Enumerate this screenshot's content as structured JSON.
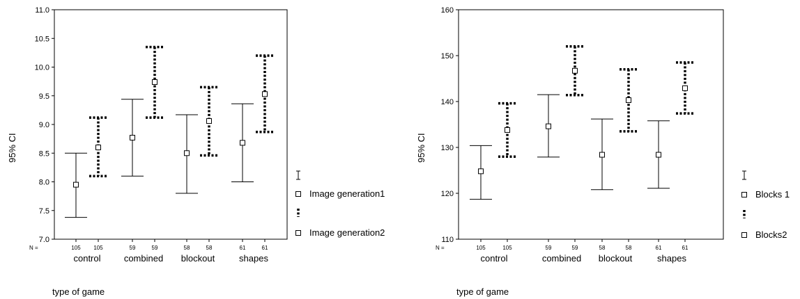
{
  "chart_data": [
    {
      "type": "errorbar",
      "ylabel": "95% CI",
      "xlabel": "type of game",
      "ylim": [
        7.0,
        11.0
      ],
      "yticks": [
        "7.0",
        "7.5",
        "8.0",
        "8.5",
        "9.0",
        "9.5",
        "10.0",
        "10.5",
        "11.0"
      ],
      "n_prefix": "N =",
      "categories": [
        "control",
        "combined",
        "blockout",
        "shapes"
      ],
      "n": [
        [
          "105",
          "105"
        ],
        [
          "59",
          "59"
        ],
        [
          "58",
          "58"
        ],
        [
          "61",
          "61"
        ]
      ],
      "legend_position": "right",
      "series": [
        {
          "name": "Image generation1",
          "style": "solid",
          "mean": [
            7.95,
            8.77,
            8.5,
            8.68
          ],
          "lower": [
            7.38,
            8.1,
            7.8,
            8.0
          ],
          "upper": [
            8.5,
            9.44,
            9.17,
            9.36
          ]
        },
        {
          "name": "Image generation2",
          "style": "dotted",
          "mean": [
            8.6,
            9.74,
            9.06,
            9.53
          ],
          "lower": [
            8.1,
            9.12,
            8.46,
            8.87
          ],
          "upper": [
            9.12,
            10.35,
            9.65,
            10.2
          ]
        }
      ]
    },
    {
      "type": "errorbar",
      "ylabel": "95% CI",
      "xlabel": "type of game",
      "ylim": [
        110,
        160
      ],
      "yticks": [
        "110",
        "120",
        "130",
        "140",
        "150",
        "160"
      ],
      "n_prefix": "N =",
      "categories": [
        "control",
        "combined",
        "blockout",
        "shapes"
      ],
      "n": [
        [
          "105",
          "105"
        ],
        [
          "59",
          "59"
        ],
        [
          "58",
          "58"
        ],
        [
          "61",
          "61"
        ]
      ],
      "legend_position": "right",
      "series": [
        {
          "name": "Blocks 1",
          "style": "solid",
          "mean": [
            124.8,
            134.6,
            128.4,
            128.4
          ],
          "lower": [
            118.7,
            127.9,
            120.8,
            121.1
          ],
          "upper": [
            130.4,
            141.5,
            136.2,
            135.8
          ]
        },
        {
          "name": "Blocks2",
          "style": "dotted",
          "mean": [
            133.8,
            146.7,
            140.3,
            142.9
          ],
          "lower": [
            128.0,
            141.4,
            133.5,
            137.4
          ],
          "upper": [
            139.6,
            152.0,
            147.0,
            148.5
          ]
        }
      ]
    }
  ]
}
